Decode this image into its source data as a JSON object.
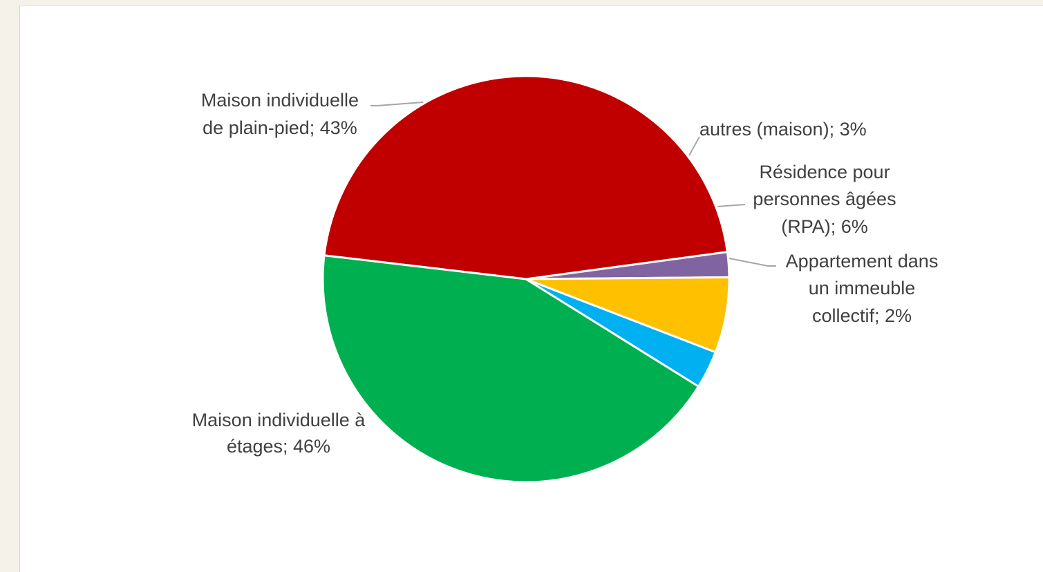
{
  "chart_data": {
    "type": "pie",
    "title": "",
    "start_category": "Appartement dans un immeuble collectif",
    "direction": "counter-clockwise",
    "slices": [
      {
        "category": "Maison individuelle à étages",
        "value": 46,
        "label_lines": [
          "Maison individuelle à",
          "étages; 46%"
        ],
        "color": "#C00000"
      },
      {
        "category": "Maison individuelle de plain-pied",
        "value": 43,
        "label_lines": [
          "Maison individuelle",
          "de plain-pied; 43%"
        ],
        "color": "#00B050"
      },
      {
        "category": "autres (maison)",
        "value": 3,
        "label_lines": [
          "autres (maison); 3%"
        ],
        "color": "#00B0F0"
      },
      {
        "category": "Résidence pour personnes âgées (RPA)",
        "value": 6,
        "label_lines": [
          "Résidence pour",
          "personnes âgées",
          "(RPA); 6%"
        ],
        "color": "#FFC000"
      },
      {
        "category": "Appartement dans un immeuble collectif",
        "value": 2,
        "label_lines": [
          "Appartement dans",
          "un immeuble",
          "collectif; 2%"
        ],
        "color": "#8064A2"
      }
    ]
  }
}
